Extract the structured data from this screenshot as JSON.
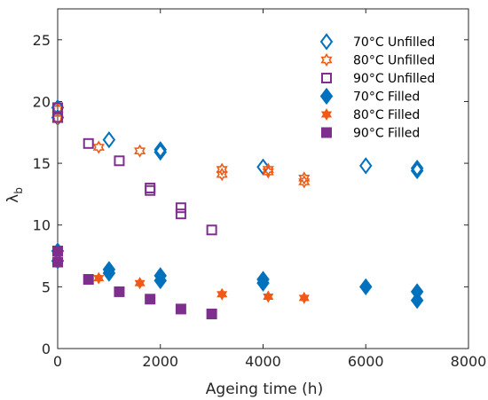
{
  "chart_data": {
    "type": "scatter",
    "xlabel": "Ageing time (h)",
    "ylabel_main": "λ",
    "ylabel_sub": "b",
    "xlim": [
      0,
      8000
    ],
    "ylim": [
      0,
      27.5
    ],
    "xticks": [
      "0",
      "2000",
      "4000",
      "6000",
      "8000"
    ],
    "xtick_values": [
      0,
      2000,
      4000,
      6000,
      8000
    ],
    "yticks": [
      "0",
      "5",
      "10",
      "15",
      "20",
      "25"
    ],
    "ytick_values": [
      0,
      5,
      10,
      15,
      20,
      25
    ],
    "grid": false,
    "legend_position": "top-right",
    "series": [
      {
        "name": "70°C Unfilled",
        "color": "#0072BD",
        "marker": "diamond",
        "filled": false,
        "x": [
          0,
          0,
          1000,
          2000,
          2000,
          4000,
          6000,
          7000,
          7000
        ],
        "y": [
          18.7,
          19.5,
          16.9,
          15.9,
          16.1,
          14.7,
          14.8,
          14.4,
          14.6
        ]
      },
      {
        "name": "80°C Unfilled",
        "color": "#F05A16",
        "marker": "hexagram",
        "filled": false,
        "x": [
          0,
          0,
          800,
          1600,
          3200,
          3200,
          4100,
          4100,
          4800,
          4800
        ],
        "y": [
          18.6,
          19.4,
          16.3,
          16.0,
          14.5,
          14.1,
          14.3,
          14.5,
          13.5,
          13.8
        ]
      },
      {
        "name": "90°C Unfilled",
        "color": "#7E2F8E",
        "marker": "square",
        "filled": false,
        "x": [
          0,
          0,
          600,
          1200,
          1800,
          1800,
          2400,
          2400,
          3000
        ],
        "y": [
          19.5,
          18.7,
          16.6,
          15.2,
          13.0,
          12.8,
          11.4,
          10.9,
          9.6
        ]
      },
      {
        "name": "70°C Filled",
        "color": "#0072BD",
        "marker": "diamond",
        "filled": true,
        "x": [
          0,
          0,
          1000,
          1000,
          2000,
          2000,
          4000,
          4000,
          6000,
          7000,
          7000
        ],
        "y": [
          7.1,
          7.9,
          6.1,
          6.4,
          5.5,
          5.9,
          5.3,
          5.6,
          5.0,
          3.9,
          4.6
        ]
      },
      {
        "name": "80°C Filled",
        "color": "#F05A16",
        "marker": "hexagram",
        "filled": true,
        "x": [
          0,
          0,
          800,
          1600,
          3200,
          4100,
          4800
        ],
        "y": [
          7.0,
          7.8,
          5.7,
          5.3,
          4.4,
          4.2,
          4.1
        ]
      },
      {
        "name": "90°C Filled",
        "color": "#7E2F8E",
        "marker": "square",
        "filled": true,
        "x": [
          0,
          0,
          600,
          1200,
          1800,
          2400,
          3000
        ],
        "y": [
          7.0,
          7.9,
          5.6,
          4.6,
          4.0,
          3.2,
          2.8
        ]
      }
    ]
  }
}
